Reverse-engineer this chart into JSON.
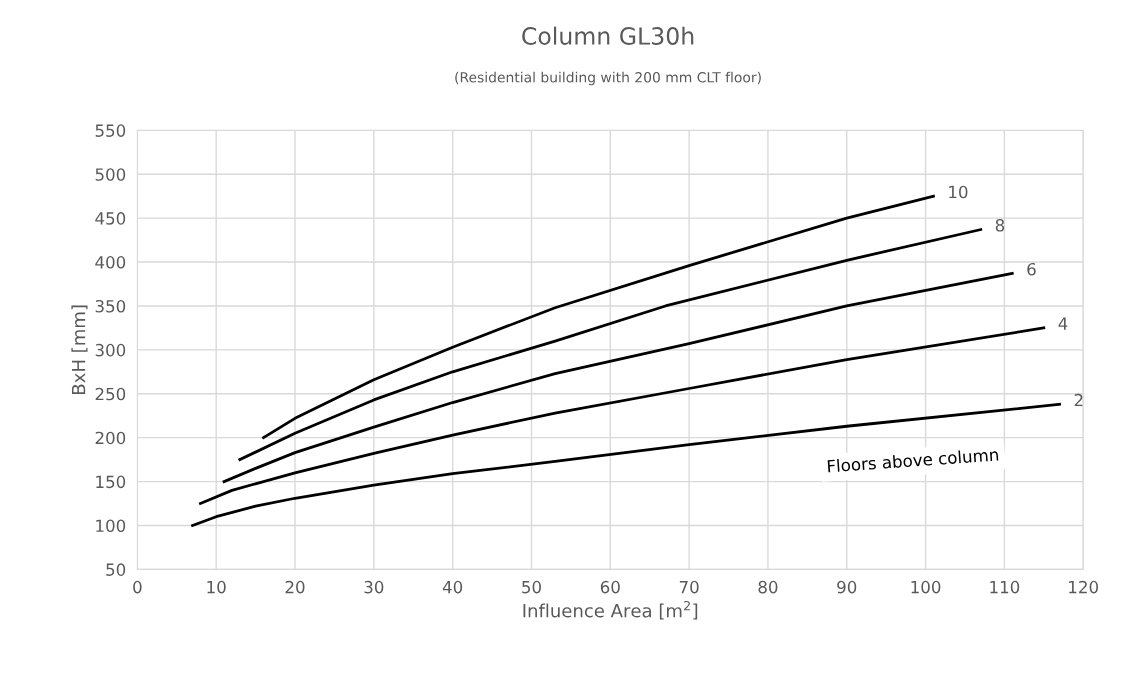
{
  "chart_data": {
    "type": "line",
    "title": "Column GL30h",
    "subtitle": "(Residential building with 200 mm CLT floor)",
    "xlabel": "Influence Area [m$^{2}$]",
    "ylabel": "BxH [mm]",
    "xlim": [
      0,
      120
    ],
    "xticks": [
      0,
      10,
      20,
      30,
      40,
      50,
      60,
      70,
      80,
      90,
      100,
      110,
      120
    ],
    "ylim": [
      50,
      550
    ],
    "yticks": [
      50,
      100,
      150,
      200,
      250,
      300,
      350,
      400,
      450,
      500,
      550
    ],
    "grid": true,
    "legend": false,
    "marker": "none",
    "line_style": "solid",
    "annotations": [
      "Floors above column"
    ],
    "series": [
      {
        "name": "10",
        "color": "#000000",
        "x": [
          16,
          20,
          30,
          40,
          53,
          70,
          90,
          101
        ],
        "values": [
          200,
          222,
          266,
          303,
          348,
          396,
          450,
          475
        ]
      },
      {
        "name": "8",
        "color": "#000000",
        "x": [
          13,
          20,
          30,
          40,
          53,
          67,
          90,
          107
        ],
        "values": [
          175,
          205,
          243,
          275,
          310,
          350,
          402,
          437
        ]
      },
      {
        "name": "6",
        "color": "#000000",
        "x": [
          11,
          15,
          20,
          30,
          40,
          53,
          70,
          90,
          111
        ],
        "values": [
          150,
          165,
          183,
          212,
          240,
          273,
          307,
          350,
          387
        ]
      },
      {
        "name": "4",
        "color": "#000000",
        "x": [
          8,
          12,
          16,
          20,
          30,
          40,
          53,
          70,
          90,
          115
        ],
        "values": [
          125,
          140,
          150,
          160,
          182,
          203,
          228,
          256,
          289,
          325
        ]
      },
      {
        "name": "2",
        "color": "#000000",
        "x": [
          7,
          10,
          15,
          20,
          30,
          40,
          53,
          70,
          90,
          117
        ],
        "values": [
          100,
          110,
          122,
          131,
          146,
          159,
          173,
          192,
          213,
          238
        ]
      }
    ]
  }
}
